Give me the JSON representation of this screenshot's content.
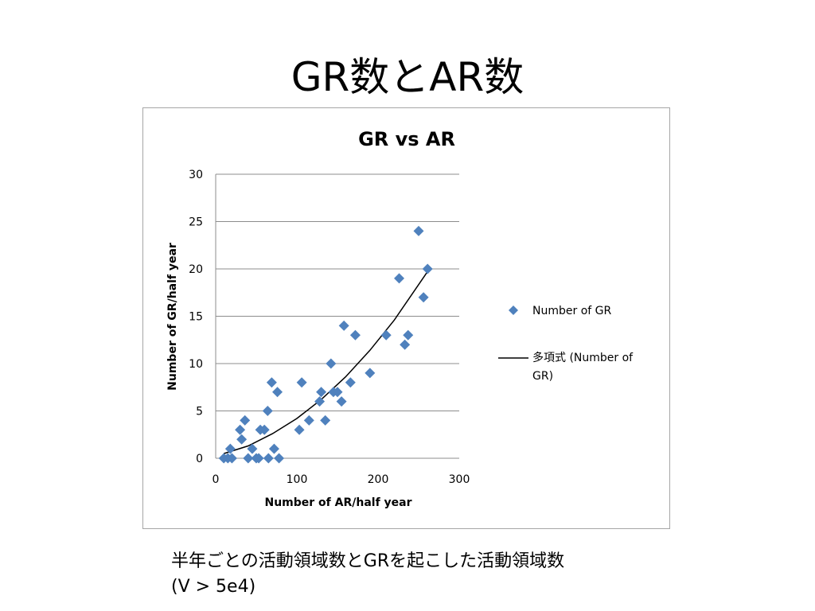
{
  "slide": {
    "title": "GR数とAR数",
    "caption_line1": "半年ごとの活動領域数とGRを起こした活動領域数",
    "caption_line2": "(V > 5e4)"
  },
  "colors": {
    "marker": "#4f81bd",
    "trendline": "#000000",
    "gridline": "#8c8c8c",
    "axis": "#8c8c8c",
    "frame": "#a6a6a6"
  },
  "chart_data": {
    "type": "scatter",
    "title": "GR vs AR",
    "xlabel": "Number of AR/half year",
    "ylabel": "Number of GR/half year",
    "xlim": [
      0,
      300
    ],
    "ylim": [
      0,
      30
    ],
    "x_ticks": [
      "0",
      "100",
      "200",
      "300"
    ],
    "y_ticks": [
      "0",
      "5",
      "10",
      "15",
      "20",
      "25",
      "30"
    ],
    "grid": "horizontal",
    "legend_position": "right",
    "series": [
      {
        "name": "Number of GR",
        "marker": "diamond",
        "points": [
          [
            10,
            0
          ],
          [
            15,
            0
          ],
          [
            18,
            1
          ],
          [
            20,
            0
          ],
          [
            30,
            3
          ],
          [
            32,
            2
          ],
          [
            36,
            4
          ],
          [
            40,
            0
          ],
          [
            45,
            1
          ],
          [
            50,
            0
          ],
          [
            53,
            0
          ],
          [
            55,
            3
          ],
          [
            60,
            3
          ],
          [
            64,
            5
          ],
          [
            65,
            0
          ],
          [
            69,
            8
          ],
          [
            72,
            1
          ],
          [
            76,
            7
          ],
          [
            78,
            0
          ],
          [
            103,
            3
          ],
          [
            106,
            8
          ],
          [
            115,
            4
          ],
          [
            128,
            6
          ],
          [
            130,
            7
          ],
          [
            135,
            4
          ],
          [
            142,
            10
          ],
          [
            145,
            7
          ],
          [
            150,
            7
          ],
          [
            155,
            6
          ],
          [
            158,
            14
          ],
          [
            166,
            8
          ],
          [
            172,
            13
          ],
          [
            190,
            9
          ],
          [
            210,
            13
          ],
          [
            226,
            19
          ],
          [
            233,
            12
          ],
          [
            237,
            13
          ],
          [
            250,
            24
          ],
          [
            256,
            17
          ],
          [
            261,
            20
          ]
        ]
      }
    ],
    "trendline": {
      "name": "多項式 (Number of GR)",
      "type": "polynomial",
      "points": [
        [
          10,
          0.5
        ],
        [
          40,
          1.3
        ],
        [
          70,
          2.6
        ],
        [
          100,
          4.2
        ],
        [
          130,
          6.2
        ],
        [
          160,
          8.6
        ],
        [
          190,
          11.4
        ],
        [
          220,
          14.6
        ],
        [
          260,
          19.6
        ]
      ]
    }
  }
}
